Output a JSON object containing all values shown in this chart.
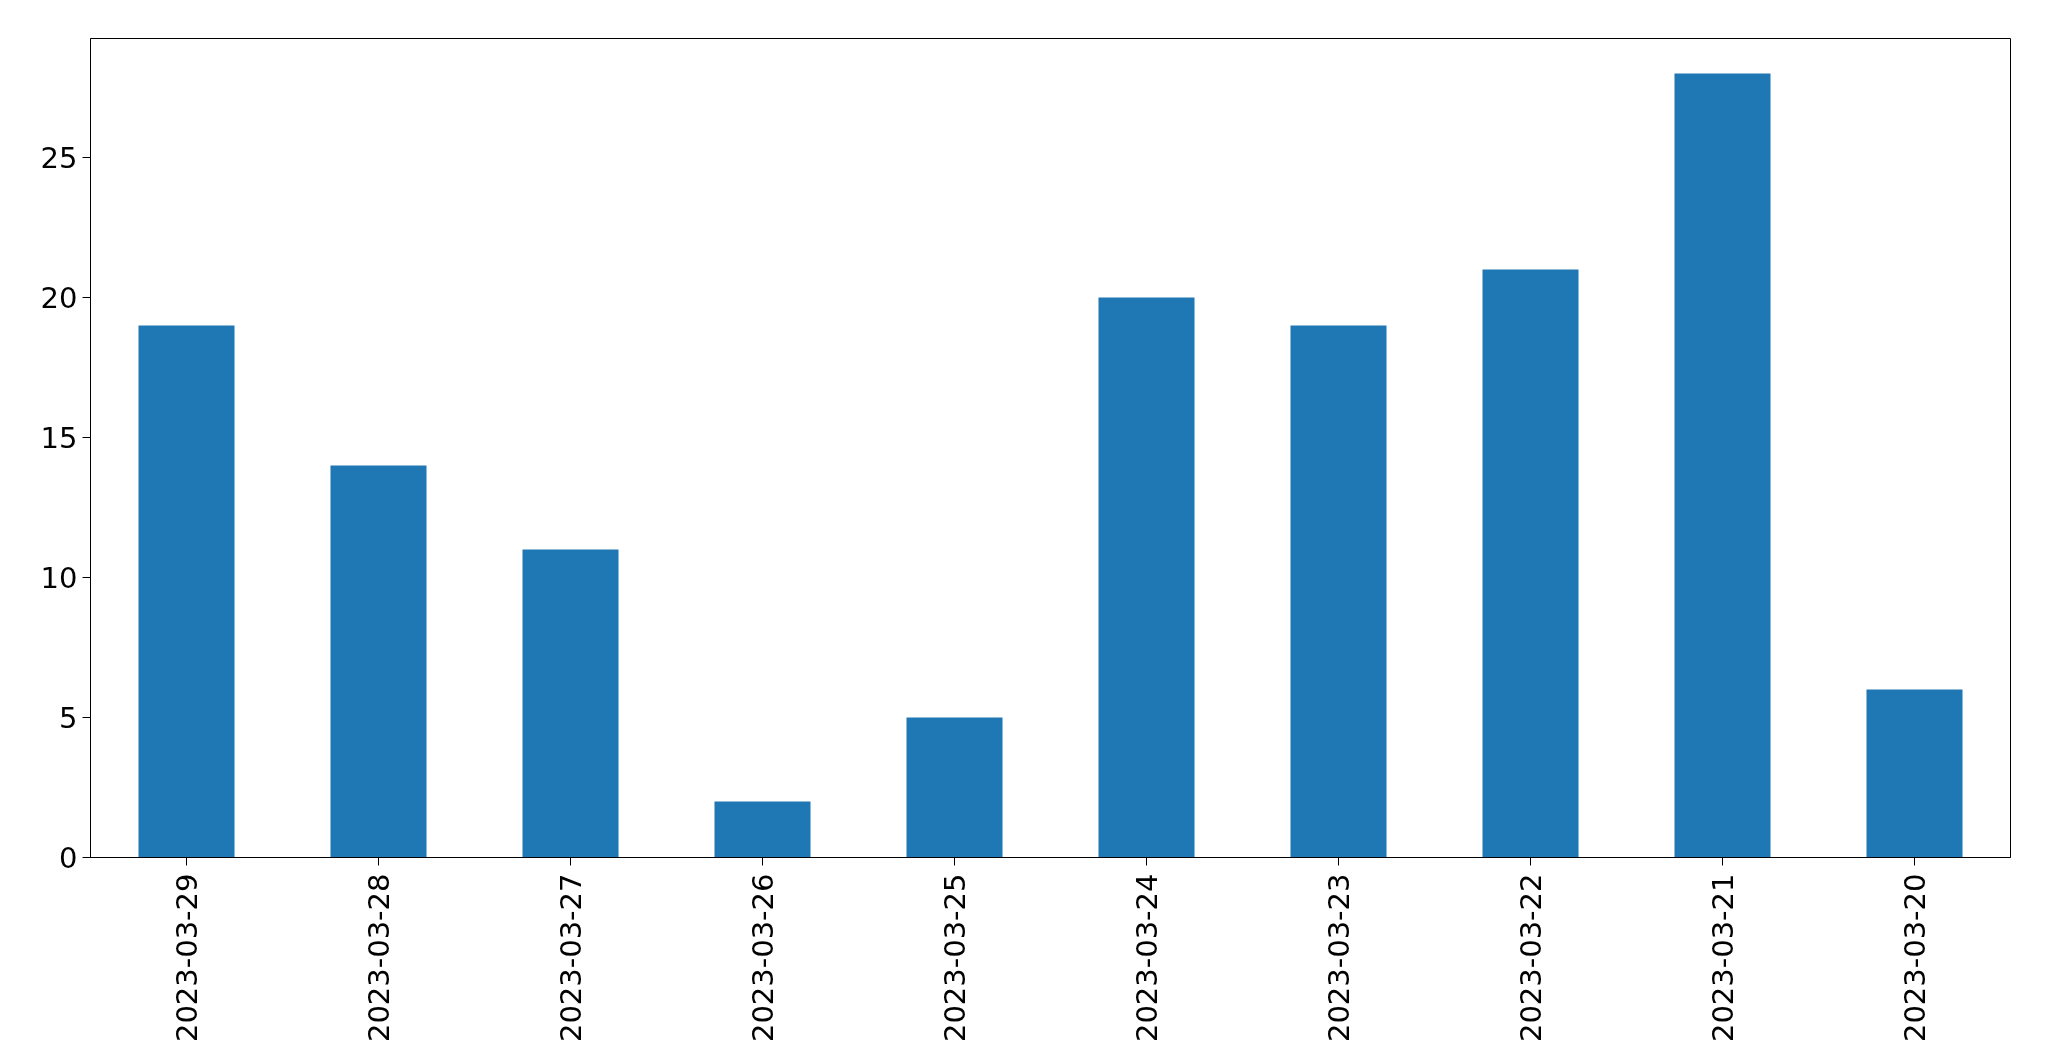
{
  "chart_data": {
    "type": "bar",
    "categories": [
      "2023-03-29",
      "2023-03-28",
      "2023-03-27",
      "2023-03-26",
      "2023-03-25",
      "2023-03-24",
      "2023-03-23",
      "2023-03-22",
      "2023-03-21",
      "2023-03-20"
    ],
    "values": [
      19,
      14,
      11,
      2,
      5,
      20,
      19,
      21,
      28,
      6
    ],
    "color": "#1f77b4",
    "ylim": [
      0,
      29.25
    ],
    "yticks": [
      0,
      5,
      10,
      15,
      20,
      25
    ],
    "grid": false
  }
}
